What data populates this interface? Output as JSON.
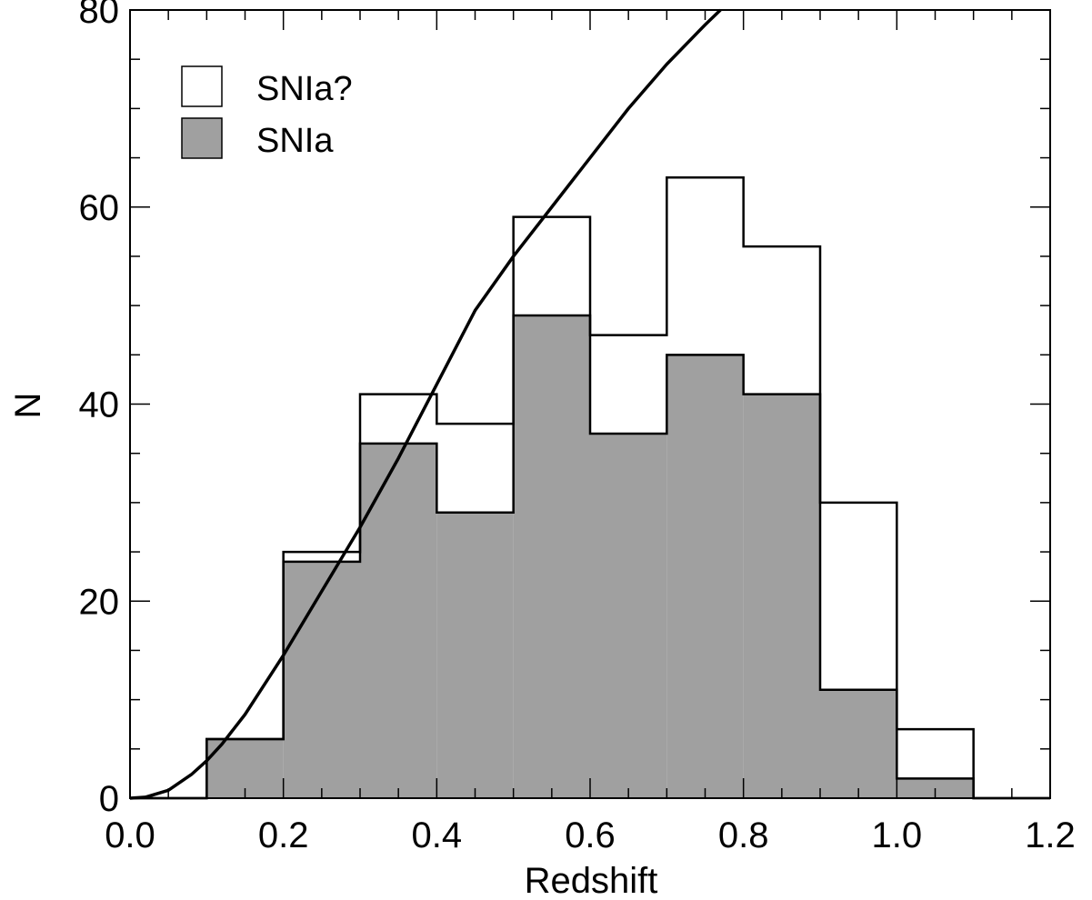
{
  "chart_data": {
    "type": "bar",
    "title": "",
    "xlabel": "Redshift",
    "ylabel": "N",
    "xlim": [
      0.0,
      1.2
    ],
    "ylim": [
      0,
      80
    ],
    "xticks": [
      0.0,
      0.2,
      0.4,
      0.6,
      0.8,
      1.0,
      1.2
    ],
    "xtick_labels": [
      "0.0",
      "0.2",
      "0.4",
      "0.6",
      "0.8",
      "1.0",
      "1.2"
    ],
    "yticks": [
      0,
      20,
      40,
      60,
      80
    ],
    "ytick_labels": [
      "0",
      "20",
      "40",
      "60",
      "80"
    ],
    "grid": false,
    "legend_position": "top-left",
    "bin_edges": [
      0.0,
      0.1,
      0.2,
      0.3,
      0.4,
      0.5,
      0.6,
      0.7,
      0.8,
      0.9,
      1.0,
      1.1,
      1.2
    ],
    "series": [
      {
        "name": "SNIa?",
        "style": "outline",
        "color": "#ffffff",
        "values": [
          0,
          6,
          25,
          41,
          38,
          59,
          47,
          63,
          56,
          30,
          7,
          0
        ]
      },
      {
        "name": "SNIa",
        "style": "filled",
        "color": "#a0a0a0",
        "values": [
          0,
          6,
          24,
          36,
          29,
          49,
          37,
          45,
          41,
          11,
          2,
          0
        ]
      }
    ],
    "curve": {
      "x": [
        0.0,
        0.02,
        0.05,
        0.08,
        0.1,
        0.12,
        0.15,
        0.2,
        0.25,
        0.3,
        0.35,
        0.4,
        0.45,
        0.5,
        0.55,
        0.6,
        0.65,
        0.7,
        0.75,
        0.77
      ],
      "y": [
        0,
        0.1,
        0.8,
        2.4,
        3.8,
        5.5,
        8.5,
        14.5,
        21.0,
        27.5,
        34.5,
        42.0,
        49.5,
        55.0,
        60.0,
        65.0,
        70.0,
        74.5,
        78.5,
        80
      ]
    }
  }
}
